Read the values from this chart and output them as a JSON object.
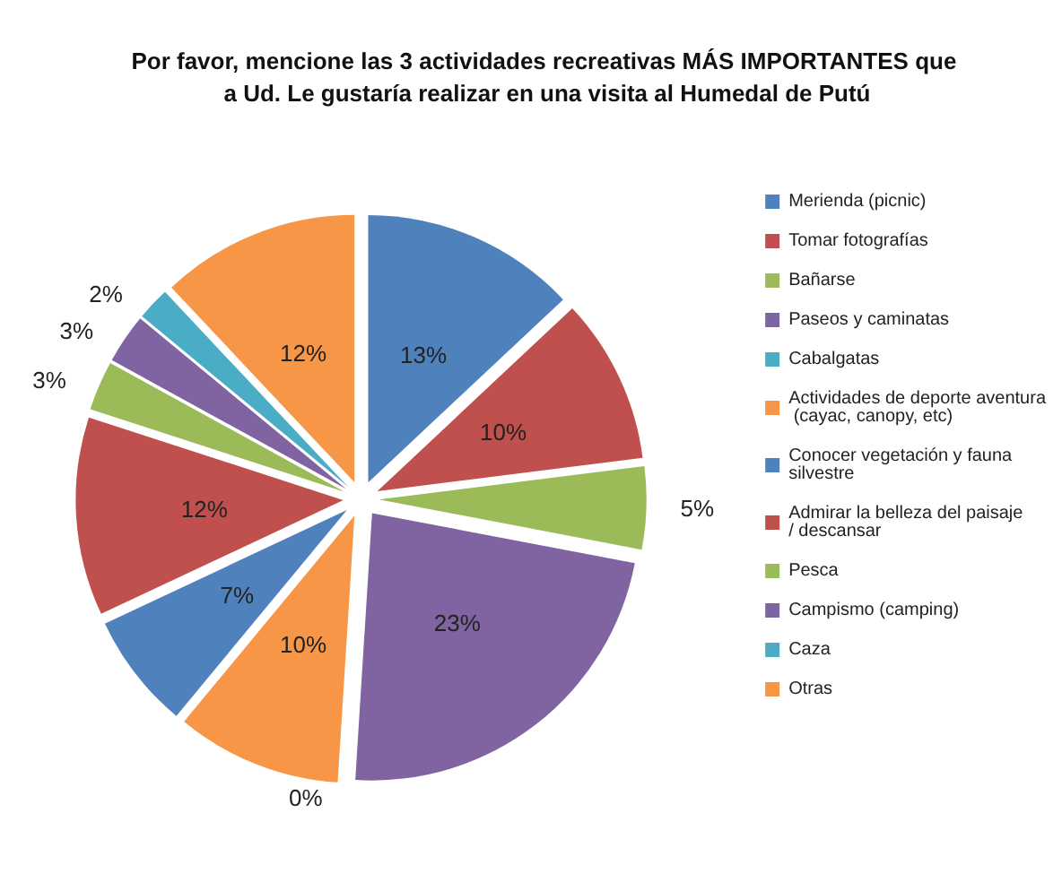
{
  "chart_data": {
    "type": "pie",
    "title": "Por favor, mencione las 3 actividades recreativas MÁS IMPORTANTES que a Ud. Le gustaría realizar en una visita al Humedal de Putú",
    "categories": [
      "Merienda (picnic)",
      "Tomar fotografías",
      "Bañarse",
      "Paseos y caminatas",
      "Cabalgatas",
      "Actividades de deporte aventura (cayac, canopy, etc)",
      "Conocer vegetación y fauna silvestre",
      "Admirar la belleza del paisaje / descansar",
      "Pesca",
      "Campismo (camping)",
      "Caza",
      "Otras"
    ],
    "values": [
      13,
      10,
      5,
      23,
      0,
      10,
      7,
      12,
      3,
      3,
      2,
      12
    ],
    "value_labels": [
      "13%",
      "10%",
      "5%",
      "23%",
      "0%",
      "10%",
      "7%",
      "12%",
      "3%",
      "3%",
      "2%",
      "12%"
    ],
    "colors": [
      "#4f81bd",
      "#c0504d",
      "#9bbb59",
      "#8064a2",
      "#4bacc6",
      "#f79646",
      "#4f81bd",
      "#c0504d",
      "#9bbb59",
      "#8064a2",
      "#4bacc6",
      "#f79646"
    ],
    "legend": "right"
  }
}
